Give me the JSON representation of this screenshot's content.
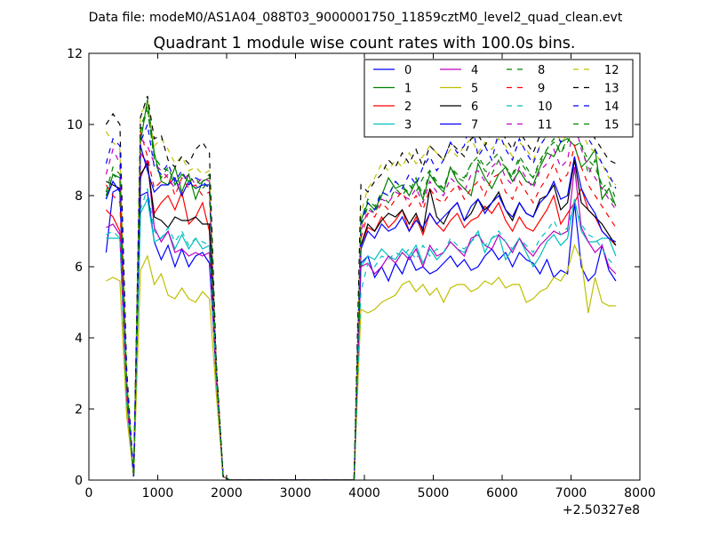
{
  "suptitle": "Data file: modeM0/AS1A04_088T03_9000001750_11859cztM0_level2_quad_clean.evt",
  "chart_data": {
    "type": "line",
    "title": "Quadrant 1 module wise count rates with 100.0s bins.",
    "xlabel": "",
    "ylabel": "",
    "x_offset_label": "+2.50327e8",
    "xlim": [
      0,
      8000
    ],
    "ylim": [
      0,
      12
    ],
    "xticks": [
      0,
      1000,
      2000,
      3000,
      4000,
      5000,
      6000,
      7000,
      8000
    ],
    "yticks": [
      0,
      2,
      4,
      6,
      8,
      10,
      12
    ],
    "legend_location": "top-right",
    "legend_columns": 4,
    "base_x": [
      250,
      350,
      450,
      550,
      650,
      750,
      850,
      950,
      1050,
      1150,
      1250,
      1350,
      1450,
      1550,
      1650,
      1750,
      1850,
      1950,
      2050,
      3850,
      3950,
      4050,
      4150,
      4250,
      4350,
      4450,
      4550,
      4650,
      4750,
      4850,
      4950,
      5050,
      5150,
      5250,
      5350,
      5450,
      5550,
      5650,
      5750,
      5850,
      5950,
      6050,
      6150,
      6250,
      6350,
      6450,
      6550,
      6650,
      6750,
      6850,
      6950,
      7050,
      7150,
      7250,
      7350,
      7450,
      7550,
      7650
    ],
    "series": [
      {
        "name": "0",
        "color": "#0000ff",
        "dash": "solid",
        "values": [
          6.4,
          8.1,
          8.2,
          2.5,
          0.1,
          8.0,
          8.1,
          6.7,
          6.2,
          6.6,
          6.0,
          6.5,
          6.0,
          6.3,
          6.4,
          6.1,
          3.0,
          0.1,
          0.0,
          0.0,
          6.1,
          6.3,
          5.7,
          6.0,
          5.6,
          6.1,
          5.8,
          6.3,
          5.9,
          6.0,
          5.8,
          5.9,
          6.1,
          6.3,
          6.0,
          6.2,
          5.9,
          6.0,
          6.3,
          6.5,
          6.2,
          6.4,
          6.0,
          6.4,
          6.2,
          6.1,
          5.8,
          6.2,
          5.7,
          5.9,
          5.8,
          7.8,
          6.0,
          5.6,
          5.8,
          6.6,
          5.9,
          5.6
        ]
      },
      {
        "name": "1",
        "color": "#008000",
        "dash": "solid",
        "values": [
          7.9,
          8.6,
          8.5,
          2.6,
          0.1,
          9.5,
          10.7,
          9.2,
          8.4,
          8.3,
          8.8,
          8.1,
          8.6,
          7.9,
          8.4,
          8.5,
          3.1,
          0.1,
          0.0,
          0.0,
          7.3,
          7.8,
          7.6,
          8.0,
          8.5,
          8.2,
          8.3,
          8.0,
          8.4,
          7.9,
          8.6,
          8.3,
          8.1,
          8.8,
          8.4,
          8.2,
          8.0,
          8.9,
          8.5,
          8.2,
          8.6,
          8.8,
          8.4,
          8.7,
          8.4,
          8.3,
          8.8,
          9.2,
          9.1,
          9.5,
          9.6,
          9.4,
          8.8,
          9.0,
          9.3,
          7.9,
          8.2,
          7.7
        ]
      },
      {
        "name": "2",
        "color": "#ff0000",
        "dash": "solid",
        "values": [
          7.6,
          7.4,
          7.0,
          2.3,
          0.1,
          9.2,
          8.9,
          7.5,
          7.8,
          8.0,
          7.6,
          8.1,
          7.2,
          7.4,
          7.8,
          7.0,
          2.9,
          0.1,
          0.0,
          0.0,
          6.6,
          7.1,
          7.0,
          7.4,
          7.1,
          7.3,
          7.6,
          7.0,
          7.4,
          6.9,
          7.5,
          7.2,
          7.0,
          7.3,
          7.5,
          7.1,
          7.3,
          7.4,
          7.7,
          7.5,
          7.8,
          7.3,
          7.0,
          7.4,
          7.1,
          7.0,
          7.3,
          7.6,
          8.0,
          7.2,
          7.5,
          7.8,
          8.2,
          7.6,
          7.4,
          7.0,
          6.8,
          6.6
        ]
      },
      {
        "name": "3",
        "color": "#00bfbf",
        "dash": "solid",
        "values": [
          6.8,
          6.8,
          6.8,
          2.2,
          0.1,
          7.5,
          7.9,
          6.7,
          6.8,
          7.0,
          6.5,
          6.9,
          6.5,
          6.8,
          6.5,
          6.6,
          2.8,
          0.1,
          0.0,
          0.0,
          6.0,
          6.3,
          6.2,
          6.5,
          6.3,
          6.2,
          6.5,
          6.3,
          6.6,
          6.1,
          6.5,
          6.2,
          6.4,
          6.7,
          6.5,
          6.4,
          6.7,
          7.0,
          6.4,
          6.8,
          6.9,
          6.2,
          6.5,
          6.8,
          6.4,
          6.0,
          6.3,
          6.7,
          6.9,
          6.6,
          6.8,
          7.9,
          7.0,
          6.7,
          6.7,
          6.8,
          6.8,
          6.3
        ]
      },
      {
        "name": "4",
        "color": "#bf00bf",
        "dash": "solid",
        "values": [
          7.1,
          7.2,
          6.9,
          2.2,
          0.1,
          8.5,
          9.0,
          7.1,
          6.7,
          7.0,
          6.4,
          6.5,
          6.3,
          6.4,
          6.3,
          6.4,
          2.8,
          0.1,
          0.0,
          0.0,
          6.0,
          6.1,
          5.8,
          6.0,
          6.3,
          6.1,
          6.4,
          6.2,
          6.5,
          6.0,
          6.6,
          6.3,
          6.4,
          6.7,
          6.5,
          6.3,
          6.8,
          6.9,
          6.6,
          6.5,
          6.9,
          6.7,
          6.4,
          6.8,
          6.5,
          6.3,
          6.6,
          6.8,
          7.0,
          6.9,
          7.0,
          8.8,
          7.1,
          6.7,
          6.4,
          6.6,
          6.0,
          5.8
        ]
      },
      {
        "name": "5",
        "color": "#bfbf00",
        "dash": "solid",
        "values": [
          5.6,
          5.7,
          5.6,
          1.8,
          0.1,
          5.9,
          6.3,
          5.5,
          5.8,
          5.2,
          5.1,
          5.4,
          5.1,
          5.0,
          5.3,
          5.1,
          2.4,
          0.1,
          0.0,
          0.0,
          4.8,
          4.7,
          4.8,
          5.0,
          5.1,
          5.2,
          5.5,
          5.6,
          5.3,
          5.5,
          5.2,
          5.4,
          5.0,
          5.4,
          5.5,
          5.5,
          5.3,
          5.4,
          5.6,
          5.5,
          5.7,
          5.4,
          5.5,
          5.5,
          5.0,
          5.1,
          5.3,
          5.4,
          5.7,
          5.6,
          5.9,
          6.6,
          6.2,
          4.7,
          5.7,
          5.0,
          4.9,
          4.9
        ]
      },
      {
        "name": "6",
        "color": "#000000",
        "dash": "solid",
        "values": [
          8.4,
          8.3,
          8.2,
          2.7,
          0.1,
          8.6,
          8.9,
          7.4,
          7.3,
          7.1,
          7.4,
          7.3,
          7.3,
          7.4,
          7.2,
          7.2,
          3.0,
          0.1,
          0.0,
          0.0,
          6.6,
          7.2,
          7.0,
          7.3,
          7.5,
          7.4,
          7.6,
          7.2,
          7.5,
          7.0,
          8.2,
          7.4,
          7.2,
          7.6,
          7.8,
          7.3,
          7.5,
          7.9,
          7.6,
          7.8,
          8.1,
          7.6,
          7.3,
          7.8,
          7.5,
          7.4,
          7.9,
          8.0,
          8.3,
          7.6,
          7.8,
          9.0,
          7.8,
          7.6,
          7.4,
          7.2,
          6.9,
          6.6
        ]
      },
      {
        "name": "7",
        "color": "#0000ff",
        "dash": "solid",
        "values": [
          7.9,
          8.4,
          8.1,
          2.6,
          0.1,
          9.4,
          8.7,
          8.1,
          8.3,
          8.3,
          8.5,
          8.0,
          8.4,
          8.2,
          8.3,
          8.3,
          3.0,
          0.1,
          0.0,
          0.0,
          6.5,
          7.0,
          6.8,
          7.2,
          7.0,
          7.1,
          7.4,
          7.0,
          7.3,
          7.1,
          7.5,
          7.2,
          7.4,
          7.6,
          7.8,
          7.3,
          7.7,
          7.9,
          7.5,
          7.8,
          8.0,
          7.6,
          7.4,
          7.8,
          7.5,
          7.4,
          7.8,
          8.0,
          8.4,
          7.9,
          8.0,
          9.1,
          8.2,
          7.8,
          7.5,
          7.0,
          6.8,
          6.7
        ]
      },
      {
        "name": "8",
        "color": "#008000",
        "dash": "dashed",
        "values": [
          8.0,
          8.6,
          8.4,
          2.6,
          0.1,
          9.9,
          10.5,
          9.0,
          8.5,
          8.8,
          8.3,
          8.6,
          8.4,
          8.2,
          8.4,
          8.6,
          3.1,
          0.1,
          0.0,
          0.0,
          7.3,
          7.9,
          7.7,
          8.1,
          8.0,
          8.4,
          8.2,
          8.1,
          8.5,
          8.0,
          8.7,
          8.3,
          8.2,
          8.8,
          8.5,
          8.4,
          8.9,
          9.0,
          8.7,
          8.6,
          9.0,
          8.8,
          8.5,
          9.0,
          8.7,
          8.5,
          8.9,
          9.3,
          9.5,
          9.2,
          9.6,
          9.4,
          9.5,
          8.6,
          9.0,
          8.2,
          8.4,
          7.9
        ]
      },
      {
        "name": "9",
        "color": "#ff0000",
        "dash": "dashed",
        "values": [
          8.3,
          8.0,
          7.8,
          2.5,
          0.1,
          9.8,
          9.1,
          8.2,
          8.4,
          8.6,
          8.0,
          8.5,
          8.2,
          8.3,
          8.0,
          8.1,
          3.0,
          0.1,
          0.0,
          0.0,
          6.8,
          7.5,
          7.4,
          7.8,
          7.6,
          7.9,
          8.1,
          7.7,
          8.0,
          7.6,
          8.2,
          7.9,
          7.8,
          8.1,
          8.3,
          7.9,
          8.2,
          8.4,
          8.0,
          8.5,
          8.6,
          8.1,
          7.9,
          8.4,
          8.1,
          7.8,
          8.2,
          8.5,
          8.9,
          8.4,
          8.6,
          9.4,
          8.8,
          8.3,
          8.0,
          7.7,
          7.4,
          7.1
        ]
      },
      {
        "name": "10",
        "color": "#00bfbf",
        "dash": "dashed",
        "values": [
          6.9,
          7.0,
          6.8,
          2.2,
          0.1,
          7.6,
          8.2,
          7.0,
          6.8,
          7.1,
          6.7,
          7.0,
          6.6,
          6.8,
          6.7,
          6.6,
          2.8,
          0.1,
          0.0,
          0.0,
          5.3,
          6.1,
          6.0,
          6.3,
          6.2,
          6.4,
          6.3,
          6.5,
          6.2,
          6.6,
          6.3,
          6.5,
          6.4,
          6.8,
          6.6,
          6.5,
          6.7,
          6.9,
          6.6,
          6.8,
          7.0,
          6.7,
          6.5,
          6.8,
          6.6,
          6.4,
          6.8,
          7.0,
          7.3,
          6.9,
          7.1,
          7.8,
          7.2,
          6.9,
          6.8,
          6.5,
          6.2,
          6.0
        ]
      },
      {
        "name": "11",
        "color": "#bf00bf",
        "dash": "dashed",
        "values": [
          8.6,
          9.3,
          8.9,
          2.7,
          0.1,
          9.6,
          9.4,
          8.9,
          8.7,
          8.5,
          8.2,
          8.4,
          8.6,
          8.3,
          8.5,
          8.4,
          3.1,
          0.1,
          0.0,
          0.0,
          7.0,
          7.6,
          7.5,
          7.9,
          7.8,
          8.1,
          8.0,
          7.9,
          8.2,
          7.8,
          8.4,
          8.1,
          8.0,
          8.5,
          8.3,
          8.1,
          8.6,
          8.7,
          8.4,
          8.8,
          9.0,
          8.5,
          8.3,
          8.8,
          8.5,
          8.2,
          8.7,
          8.9,
          9.3,
          8.8,
          9.0,
          10.1,
          9.3,
          8.8,
          8.5,
          8.2,
          7.9,
          7.6
        ]
      },
      {
        "name": "12",
        "color": "#bfbf00",
        "dash": "dashed",
        "values": [
          9.8,
          9.5,
          9.3,
          2.9,
          0.1,
          10.3,
          10.6,
          9.4,
          9.6,
          9.3,
          8.9,
          9.1,
          8.7,
          8.8,
          8.6,
          8.7,
          3.2,
          0.1,
          0.0,
          0.0,
          7.5,
          8.2,
          8.5,
          8.9,
          8.7,
          9.0,
          8.8,
          9.2,
          8.9,
          9.1,
          9.4,
          9.2,
          9.0,
          9.3,
          9.1,
          9.4,
          9.6,
          9.2,
          9.5,
          9.3,
          9.6,
          9.4,
          9.1,
          9.5,
          9.3,
          9.0,
          9.4,
          9.7,
          10.0,
          9.5,
          9.7,
          10.4,
          9.8,
          9.4,
          9.2,
          8.9,
          8.5,
          8.3
        ]
      },
      {
        "name": "13",
        "color": "#000000",
        "dash": "dashed",
        "values": [
          10.0,
          10.3,
          10.0,
          3.1,
          0.1,
          10.2,
          10.8,
          9.6,
          9.7,
          9.0,
          8.8,
          9.1,
          8.9,
          9.3,
          9.5,
          9.2,
          3.3,
          0.1,
          0.0,
          0.0,
          8.3,
          8.1,
          8.4,
          8.6,
          9.0,
          8.8,
          9.2,
          8.9,
          9.3,
          8.8,
          9.4,
          9.2,
          9.0,
          9.5,
          9.3,
          9.1,
          9.6,
          9.7,
          9.4,
          9.8,
          9.9,
          9.6,
          9.3,
          9.8,
          9.5,
          9.2,
          9.7,
          10.0,
          10.4,
          9.9,
          10.2,
          11.2,
          10.5,
          9.9,
          9.6,
          9.3,
          9.0,
          8.9
        ]
      },
      {
        "name": "14",
        "color": "#0000ff",
        "dash": "dashed",
        "values": [
          8.9,
          9.6,
          9.4,
          2.9,
          0.1,
          9.5,
          10.0,
          8.8,
          8.6,
          8.9,
          8.4,
          8.7,
          8.3,
          8.5,
          8.4,
          8.2,
          3.1,
          0.1,
          0.0,
          0.0,
          7.2,
          7.8,
          7.6,
          8.1,
          8.0,
          8.4,
          8.2,
          8.6,
          8.3,
          8.8,
          9.1,
          8.7,
          9.0,
          9.5,
          9.2,
          9.4,
          10.2,
          9.1,
          9.4,
          9.0,
          9.8,
          9.3,
          9.0,
          9.6,
          9.2,
          8.9,
          9.4,
          9.7,
          9.9,
          9.5,
          9.8,
          10.6,
          10.0,
          9.6,
          9.3,
          8.9,
          8.6,
          8.2
        ]
      },
      {
        "name": "15",
        "color": "#008000",
        "dash": "dashed",
        "values": [
          8.1,
          8.8,
          8.6,
          2.7,
          0.1,
          9.8,
          10.4,
          9.1,
          8.8,
          8.7,
          8.3,
          8.6,
          8.4,
          8.5,
          8.2,
          8.4,
          3.1,
          0.1,
          0.0,
          0.0,
          7.1,
          7.7,
          7.5,
          8.0,
          7.8,
          8.2,
          8.0,
          8.3,
          8.1,
          8.5,
          8.7,
          8.4,
          8.2,
          8.8,
          8.6,
          8.5,
          8.9,
          9.1,
          8.8,
          9.0,
          9.2,
          8.8,
          8.6,
          9.1,
          8.8,
          8.5,
          9.0,
          9.3,
          9.6,
          9.2,
          9.5,
          9.9,
          9.4,
          9.0,
          8.8,
          8.3,
          8.0,
          7.7
        ]
      }
    ]
  }
}
